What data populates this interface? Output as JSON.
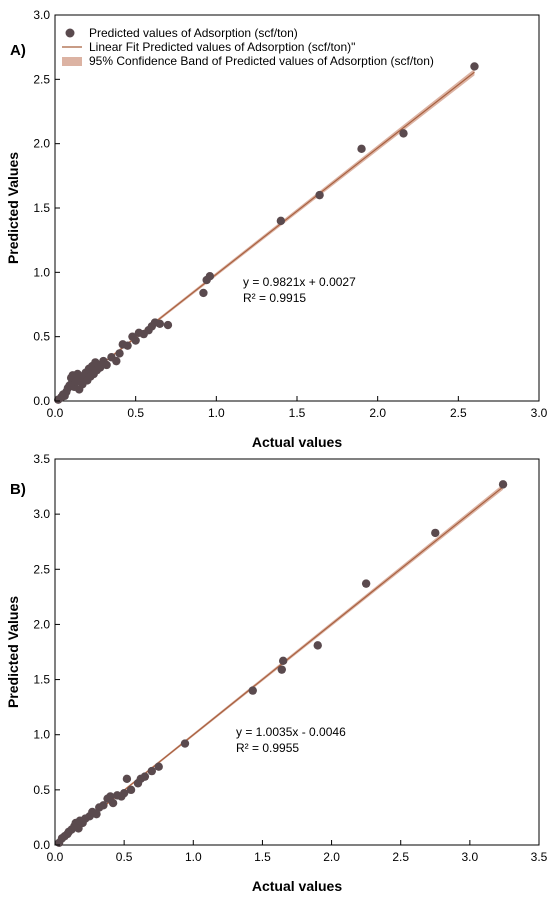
{
  "colors": {
    "points": "#5a4a4e",
    "fit_line": "#a8603f",
    "band": "#dcb3a3"
  },
  "legend": {
    "points": "Predicted values of Adsorption (scf/ton)",
    "fit": "Linear Fit Predicted values of Adsorption (scf/ton)\"",
    "band": "95% Confidence Band of Predicted values of Adsorption (scf/ton)"
  },
  "chart_data": [
    {
      "type": "scatter",
      "panel_label": "A)",
      "xlabel": "Actual values",
      "ylabel": "Predicted Values",
      "xlim": [
        0,
        3.0
      ],
      "ylim": [
        0,
        3.0
      ],
      "xticks": [
        "0.0",
        "0.5",
        "1.0",
        "1.5",
        "2.0",
        "2.5",
        "3.0"
      ],
      "yticks": [
        "0.0",
        "0.5",
        "1.0",
        "1.5",
        "2.0",
        "2.5",
        "3.0"
      ],
      "grid": false,
      "legend_position": "top-left",
      "equation": "y = 0.9821x + 0.0027",
      "r2": "R² = 0.9915",
      "fit": {
        "slope": 0.9821,
        "intercept": 0.0027
      },
      "points": [
        [
          0.02,
          0.01
        ],
        [
          0.04,
          0.03
        ],
        [
          0.05,
          0.05
        ],
        [
          0.06,
          0.04
        ],
        [
          0.07,
          0.07
        ],
        [
          0.08,
          0.1
        ],
        [
          0.09,
          0.12
        ],
        [
          0.1,
          0.13
        ],
        [
          0.1,
          0.18
        ],
        [
          0.11,
          0.2
        ],
        [
          0.12,
          0.11
        ],
        [
          0.13,
          0.15
        ],
        [
          0.14,
          0.21
        ],
        [
          0.15,
          0.09
        ],
        [
          0.16,
          0.19
        ],
        [
          0.17,
          0.13
        ],
        [
          0.18,
          0.17
        ],
        [
          0.19,
          0.22
        ],
        [
          0.2,
          0.16
        ],
        [
          0.21,
          0.25
        ],
        [
          0.22,
          0.19
        ],
        [
          0.23,
          0.27
        ],
        [
          0.24,
          0.21
        ],
        [
          0.25,
          0.3
        ],
        [
          0.26,
          0.24
        ],
        [
          0.27,
          0.28
        ],
        [
          0.28,
          0.26
        ],
        [
          0.3,
          0.31
        ],
        [
          0.32,
          0.28
        ],
        [
          0.35,
          0.34
        ],
        [
          0.38,
          0.31
        ],
        [
          0.4,
          0.37
        ],
        [
          0.42,
          0.44
        ],
        [
          0.45,
          0.43
        ],
        [
          0.48,
          0.5
        ],
        [
          0.5,
          0.47
        ],
        [
          0.52,
          0.53
        ],
        [
          0.55,
          0.52
        ],
        [
          0.58,
          0.55
        ],
        [
          0.6,
          0.58
        ],
        [
          0.62,
          0.61
        ],
        [
          0.65,
          0.6
        ],
        [
          0.7,
          0.59
        ],
        [
          0.92,
          0.84
        ],
        [
          0.94,
          0.94
        ],
        [
          0.96,
          0.97
        ],
        [
          1.4,
          1.4
        ],
        [
          1.64,
          1.6
        ],
        [
          1.9,
          1.96
        ],
        [
          2.16,
          2.08
        ],
        [
          2.6,
          2.6
        ]
      ]
    },
    {
      "type": "scatter",
      "panel_label": "B)",
      "xlabel": "Actual values",
      "ylabel": "Predicted Values",
      "xlim": [
        0,
        3.5
      ],
      "ylim": [
        0,
        3.5
      ],
      "xticks": [
        "0.0",
        "0.5",
        "1.0",
        "1.5",
        "2.0",
        "2.5",
        "3.0",
        "3.5"
      ],
      "yticks": [
        "0.0",
        "0.5",
        "1.0",
        "1.5",
        "2.0",
        "2.5",
        "3.0",
        "3.5"
      ],
      "grid": false,
      "equation": "y = 1.0035x - 0.0046",
      "r2": "R² = 0.9955",
      "fit": {
        "slope": 1.0035,
        "intercept": -0.0046
      },
      "points": [
        [
          0.03,
          0.02
        ],
        [
          0.05,
          0.06
        ],
        [
          0.07,
          0.08
        ],
        [
          0.09,
          0.1
        ],
        [
          0.1,
          0.12
        ],
        [
          0.12,
          0.14
        ],
        [
          0.14,
          0.17
        ],
        [
          0.15,
          0.2
        ],
        [
          0.17,
          0.15
        ],
        [
          0.18,
          0.22
        ],
        [
          0.2,
          0.2
        ],
        [
          0.22,
          0.24
        ],
        [
          0.25,
          0.26
        ],
        [
          0.27,
          0.3
        ],
        [
          0.3,
          0.28
        ],
        [
          0.32,
          0.34
        ],
        [
          0.35,
          0.36
        ],
        [
          0.38,
          0.42
        ],
        [
          0.4,
          0.44
        ],
        [
          0.42,
          0.38
        ],
        [
          0.45,
          0.45
        ],
        [
          0.48,
          0.44
        ],
        [
          0.5,
          0.47
        ],
        [
          0.52,
          0.6
        ],
        [
          0.55,
          0.5
        ],
        [
          0.6,
          0.56
        ],
        [
          0.62,
          0.6
        ],
        [
          0.65,
          0.62
        ],
        [
          0.7,
          0.67
        ],
        [
          0.75,
          0.71
        ],
        [
          0.94,
          0.92
        ],
        [
          1.43,
          1.4
        ],
        [
          1.64,
          1.59
        ],
        [
          1.65,
          1.67
        ],
        [
          1.9,
          1.81
        ],
        [
          2.25,
          2.37
        ],
        [
          2.75,
          2.83
        ],
        [
          3.24,
          3.27
        ]
      ]
    }
  ]
}
